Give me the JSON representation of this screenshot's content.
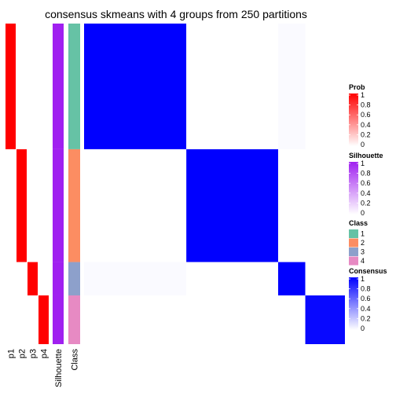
{
  "chart_data": {
    "type": "heatmap",
    "title": "consensus skmeans with 4 groups from 250 partitions",
    "groups": [
      {
        "label": "1",
        "color": "#66c2a5",
        "size": 49
      },
      {
        "label": "2",
        "color": "#fc8d62",
        "size": 44
      },
      {
        "label": "3",
        "color": "#8da0cb",
        "size": 13
      },
      {
        "label": "4",
        "color": "#e78ac3",
        "size": 19
      }
    ],
    "annotation_columns": [
      "p1",
      "p2",
      "p3",
      "p4",
      "Silhouette",
      "Class"
    ],
    "group_probability": [
      1,
      1,
      1,
      1
    ],
    "group_silhouette": [
      1,
      1,
      1,
      1
    ],
    "consensus_matrix": [
      [
        1.0,
        0.0,
        0.02,
        0.0
      ],
      [
        0.0,
        1.0,
        0.0,
        0.0
      ],
      [
        0.02,
        0.0,
        1.0,
        0.0
      ],
      [
        0.0,
        0.0,
        0.0,
        0.97
      ]
    ],
    "legends": [
      {
        "title": "Prob",
        "type": "continuous",
        "colors": [
          "#ffffff",
          "#ff0000"
        ],
        "ticks": [
          "1",
          "0.8",
          "0.6",
          "0.4",
          "0.2",
          "0"
        ]
      },
      {
        "title": "Silhouette",
        "type": "continuous",
        "colors": [
          "#ffffff",
          "#a020f0"
        ],
        "ticks": [
          "1",
          "0.8",
          "0.6",
          "0.4",
          "0.2",
          "0"
        ]
      },
      {
        "title": "Class",
        "type": "discrete",
        "items": [
          {
            "label": "1",
            "color": "#66c2a5"
          },
          {
            "label": "2",
            "color": "#fc8d62"
          },
          {
            "label": "3",
            "color": "#8da0cb"
          },
          {
            "label": "4",
            "color": "#e78ac3"
          }
        ]
      },
      {
        "title": "Consensus",
        "type": "continuous",
        "colors": [
          "#ffffff",
          "#0000ff"
        ],
        "ticks": [
          "1",
          "0.8",
          "0.6",
          "0.4",
          "0.2",
          "0"
        ]
      }
    ]
  }
}
